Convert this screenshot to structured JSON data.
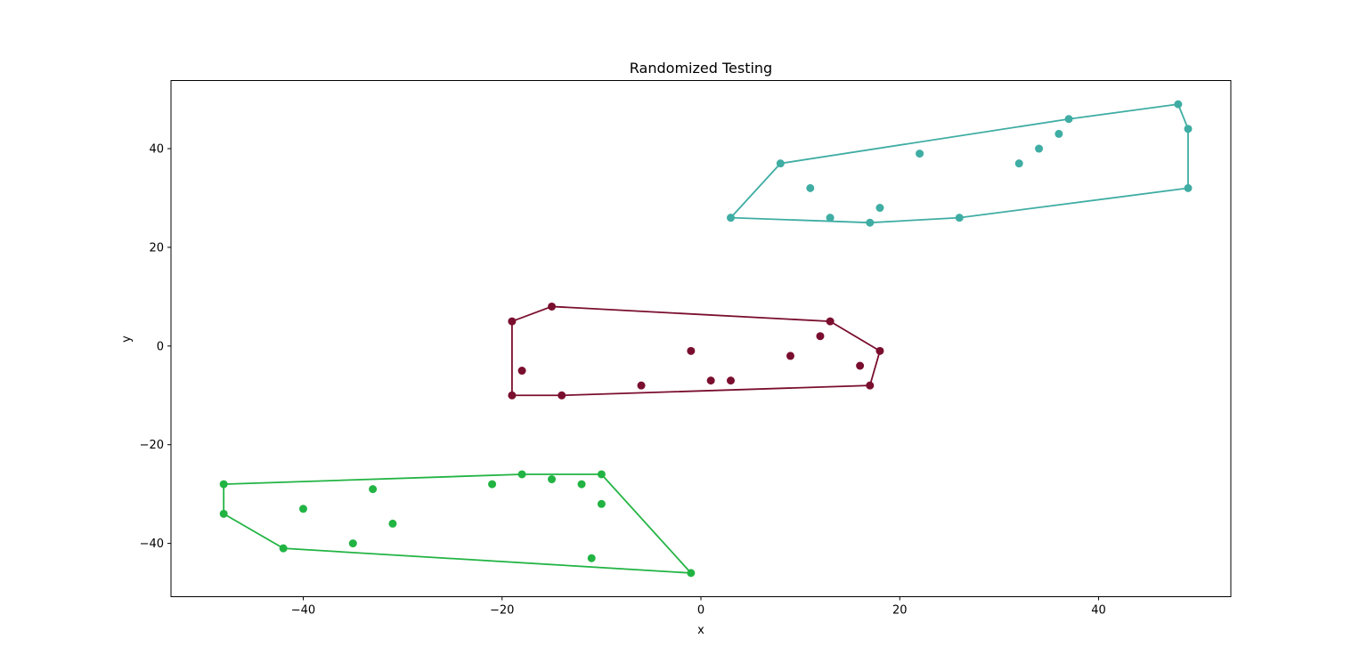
{
  "chart_data": {
    "type": "scatter",
    "title": "Randomized Testing",
    "xlabel": "x",
    "ylabel": "y",
    "xlim": [
      -53.3,
      53.3
    ],
    "ylim": [
      -50.8,
      53.8
    ],
    "xticks": [
      -40,
      -20,
      0,
      20,
      40
    ],
    "yticks": [
      -40,
      -20,
      0,
      20,
      40
    ],
    "grid": false,
    "groups": [
      {
        "color": "#3fada3",
        "points": [
          [
            48,
            49
          ],
          [
            37,
            46
          ],
          [
            49,
            44
          ],
          [
            36,
            43
          ],
          [
            34,
            40
          ],
          [
            22,
            39
          ],
          [
            8,
            37
          ],
          [
            32,
            37
          ],
          [
            11,
            32
          ],
          [
            49,
            32
          ],
          [
            18,
            28
          ],
          [
            3,
            26
          ],
          [
            13,
            26
          ],
          [
            26,
            26
          ],
          [
            17,
            25
          ]
        ],
        "hull": [
          [
            3,
            26
          ],
          [
            8,
            37
          ],
          [
            37,
            46
          ],
          [
            48,
            49
          ],
          [
            49,
            44
          ],
          [
            49,
            32
          ],
          [
            26,
            26
          ],
          [
            17,
            25
          ],
          [
            3,
            26
          ]
        ]
      },
      {
        "color": "#7a0e2e",
        "points": [
          [
            -15,
            8
          ],
          [
            -19,
            5
          ],
          [
            13,
            5
          ],
          [
            12,
            2
          ],
          [
            -1,
            -1
          ],
          [
            18,
            -1
          ],
          [
            9,
            -2
          ],
          [
            16,
            -4
          ],
          [
            -18,
            -5
          ],
          [
            1,
            -7
          ],
          [
            3,
            -7
          ],
          [
            -6,
            -8
          ],
          [
            17,
            -8
          ],
          [
            -19,
            -10
          ],
          [
            -14,
            -10
          ]
        ],
        "hull": [
          [
            -19,
            -10
          ],
          [
            -19,
            5
          ],
          [
            -15,
            8
          ],
          [
            13,
            5
          ],
          [
            18,
            -1
          ],
          [
            17,
            -8
          ],
          [
            -14,
            -10
          ],
          [
            -19,
            -10
          ]
        ]
      },
      {
        "color": "#22b443",
        "points": [
          [
            -18,
            -26
          ],
          [
            -10,
            -26
          ],
          [
            -15,
            -27
          ],
          [
            -48,
            -28
          ],
          [
            -21,
            -28
          ],
          [
            -12,
            -28
          ],
          [
            -33,
            -29
          ],
          [
            -10,
            -32
          ],
          [
            -40,
            -33
          ],
          [
            -48,
            -34
          ],
          [
            -31,
            -36
          ],
          [
            -35,
            -40
          ],
          [
            -42,
            -41
          ],
          [
            -11,
            -43
          ],
          [
            -1,
            -46
          ]
        ],
        "hull": [
          [
            -48,
            -28
          ],
          [
            -18,
            -26
          ],
          [
            -10,
            -26
          ],
          [
            -1,
            -46
          ],
          [
            -42,
            -41
          ],
          [
            -48,
            -34
          ],
          [
            -48,
            -28
          ]
        ]
      }
    ]
  }
}
